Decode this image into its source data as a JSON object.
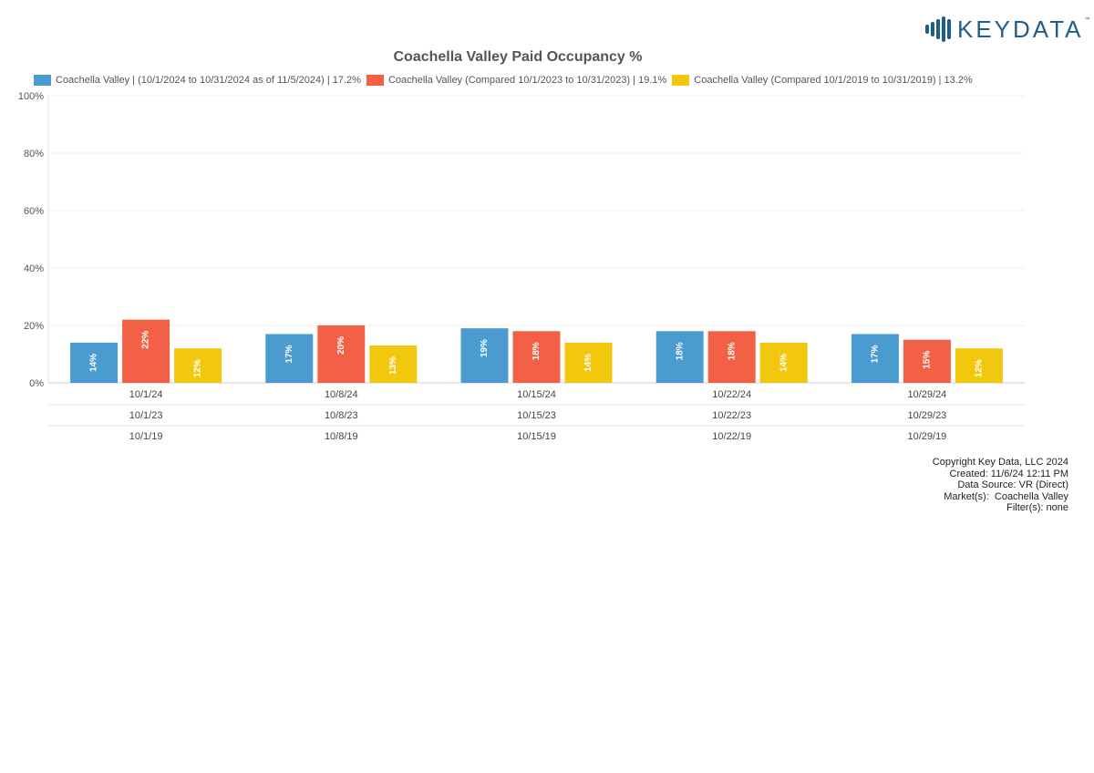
{
  "logo": {
    "text": "KEYDATA",
    "tm": "™"
  },
  "chart_data": {
    "type": "bar",
    "title": "Coachella Valley Paid Occupancy %",
    "categories": [
      [
        "10/1/24",
        "10/1/23",
        "10/1/19"
      ],
      [
        "10/8/24",
        "10/8/23",
        "10/8/19"
      ],
      [
        "10/15/24",
        "10/15/23",
        "10/15/19"
      ],
      [
        "10/22/24",
        "10/22/23",
        "10/22/19"
      ],
      [
        "10/29/24",
        "10/29/23",
        "10/29/19"
      ]
    ],
    "series": [
      {
        "name": "Coachella Valley | (10/1/2024 to 10/31/2024 as of 11/5/2024) | 17.2%",
        "color": "#4a9bcf",
        "values": [
          14,
          17,
          19,
          18,
          17
        ],
        "labels": [
          "14%",
          "17%",
          "19%",
          "18%",
          "17%"
        ]
      },
      {
        "name": "Coachella Valley (Compared 10/1/2023 to 10/31/2023) | 19.1%",
        "color": "#f26145",
        "values": [
          22,
          20,
          18,
          18,
          15
        ],
        "labels": [
          "22%",
          "20%",
          "18%",
          "18%",
          "15%"
        ]
      },
      {
        "name": "Coachella Valley (Compared 10/1/2019 to 10/31/2019) | 13.2%",
        "color": "#f2c80f",
        "values": [
          12,
          13,
          14,
          14,
          12
        ],
        "labels": [
          "12%",
          "13%",
          "14%",
          "14%",
          "12%"
        ]
      }
    ],
    "yticks": [
      "0%",
      "20%",
      "40%",
      "60%",
      "80%",
      "100%"
    ],
    "ylim": [
      0,
      100
    ],
    "legend": "top",
    "grid": true
  },
  "footer": {
    "copyright": "Copyright Key Data, LLC 2024",
    "created": "Created: 11/6/24 12:11 PM",
    "source": "Data Source: VR (Direct)",
    "markets": "Market(s):  Coachella Valley",
    "filters": "Filter(s): none"
  }
}
